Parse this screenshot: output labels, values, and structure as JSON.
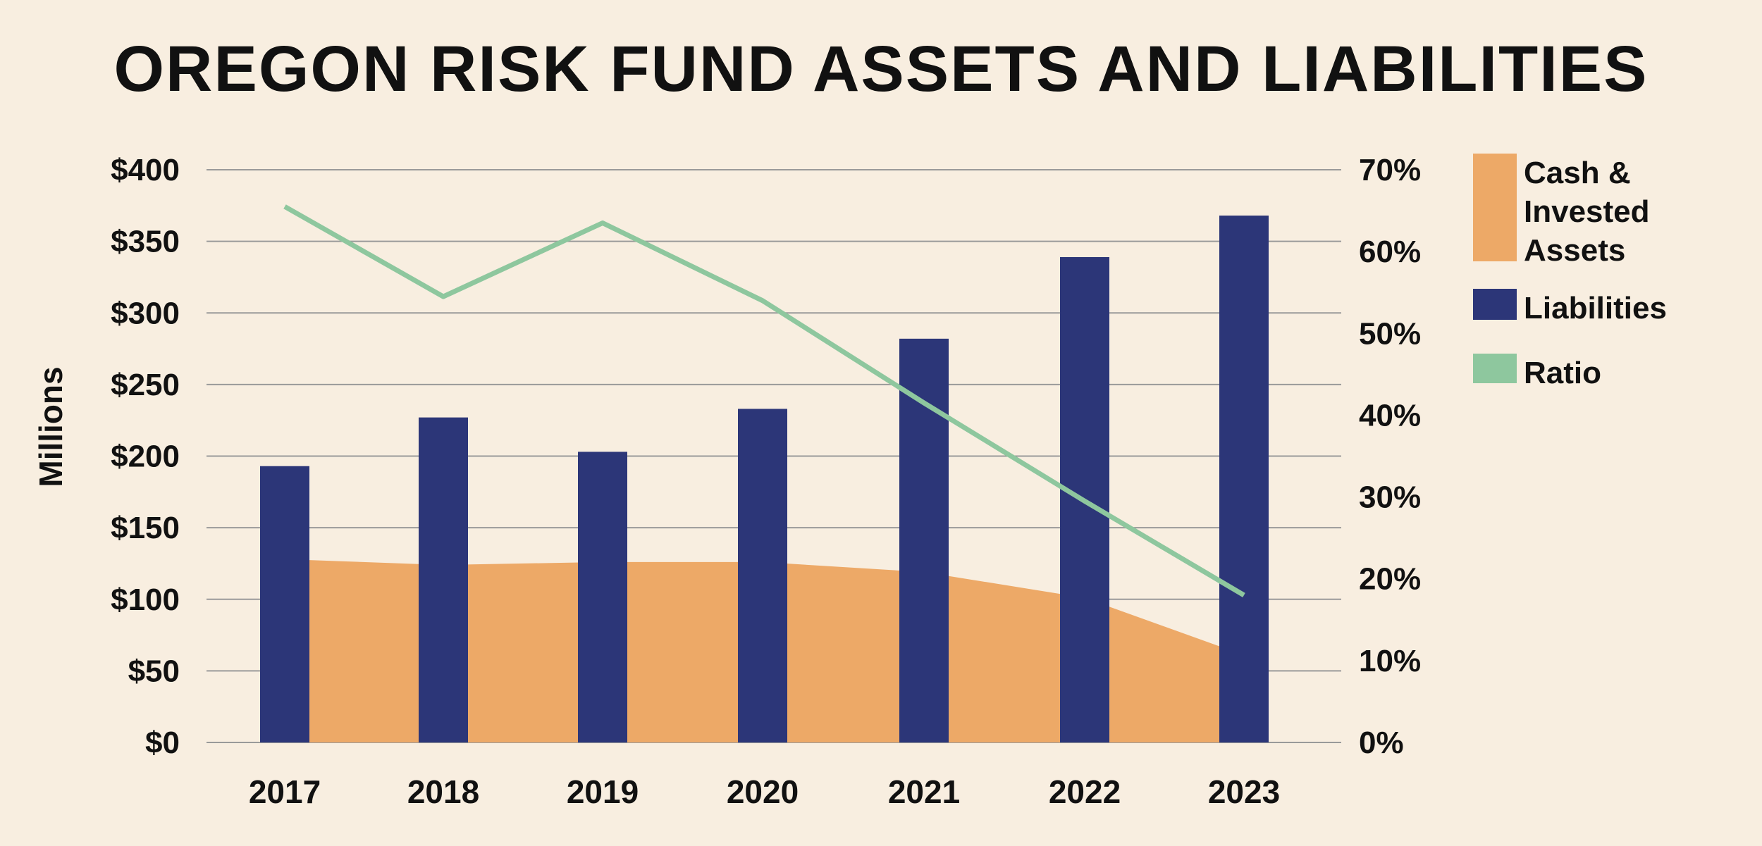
{
  "title": "OREGON RISK FUND ASSETS AND LIABILITIES",
  "colors": {
    "background": "#f8eee0",
    "assets": "#eda967",
    "liabilities": "#2c3678",
    "ratio": "#8ec79e",
    "grid": "#9a9a9a"
  },
  "chart_data": {
    "type": "bar",
    "categories": [
      "2017",
      "2018",
      "2019",
      "2020",
      "2021",
      "2022",
      "2023"
    ],
    "ylabel": "Millions",
    "ylim": [
      0,
      400
    ],
    "y2lim": [
      0,
      70
    ],
    "yticks": [
      "$0",
      "$50",
      "$100",
      "$150",
      "$200",
      "$250",
      "$300",
      "$350",
      "$400"
    ],
    "y2ticks": [
      "0%",
      "10%",
      "20%",
      "30%",
      "40%",
      "50%",
      "60%",
      "70%"
    ],
    "grid": true,
    "legend_position": "right",
    "series": [
      {
        "name": "Cash & Invested Assets",
        "kind": "area",
        "axis": "left",
        "values": [
          128,
          124,
          126,
          126,
          119,
          101,
          61
        ]
      },
      {
        "name": "Liabilities",
        "kind": "bar",
        "axis": "left",
        "values": [
          193,
          227,
          203,
          233,
          282,
          339,
          368
        ]
      },
      {
        "name": "Ratio",
        "kind": "line",
        "axis": "right",
        "values": [
          65.5,
          54.5,
          63.5,
          54,
          41.5,
          29.5,
          18
        ]
      }
    ]
  },
  "legend": [
    {
      "label": "Cash &\nInvested\nAssets",
      "color_key": "assets"
    },
    {
      "label": "Liabilities",
      "color_key": "liabilities"
    },
    {
      "label": "Ratio",
      "color_key": "ratio"
    }
  ]
}
